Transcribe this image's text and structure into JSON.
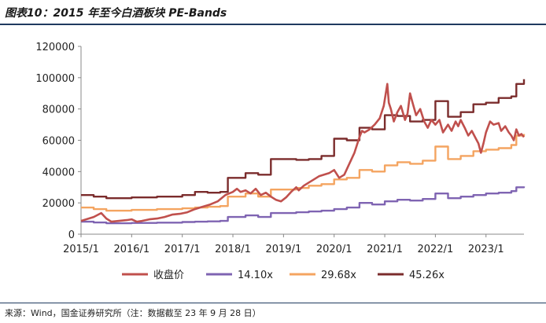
{
  "header": {
    "title": "图表10：2015 年至今白酒板块 PE-Bands"
  },
  "footer": {
    "source": "来源：Wind，国金证券研究所（注：数据截至 23 年 9 月 28 日）"
  },
  "chart_data": {
    "type": "line",
    "title": "2015 年至今白酒板块 PE-Bands",
    "xlabel": "",
    "ylabel": "",
    "ylim": [
      0,
      120000
    ],
    "yticks": [
      0,
      20000,
      40000,
      60000,
      80000,
      100000,
      120000
    ],
    "ytick_labels": [
      "0",
      "20000",
      "40000",
      "60000",
      "80000",
      "100000",
      "120000"
    ],
    "xlim": [
      2015.0,
      2023.75
    ],
    "xticks": [
      2015,
      2016,
      2017,
      2018,
      2019,
      2020,
      2021,
      2022,
      2023
    ],
    "xtick_labels": [
      "2015/1",
      "2016/1",
      "2017/1",
      "2018/1",
      "2019/1",
      "2020/1",
      "2021/1",
      "2022/1",
      "2023/1"
    ],
    "grid": false,
    "legend_position": "bottom",
    "series": [
      {
        "name": "收盘价",
        "color": "#c0504d",
        "step": false,
        "x": [
          2015.0,
          2015.1,
          2015.25,
          2015.4,
          2015.5,
          2015.6,
          2015.75,
          2015.9,
          2016.0,
          2016.1,
          2016.2,
          2016.35,
          2016.5,
          2016.65,
          2016.8,
          2016.95,
          2017.1,
          2017.25,
          2017.4,
          2017.55,
          2017.7,
          2017.85,
          2018.0,
          2018.08,
          2018.15,
          2018.25,
          2018.35,
          2018.45,
          2018.55,
          2018.65,
          2018.75,
          2018.85,
          2018.95,
          2019.05,
          2019.15,
          2019.25,
          2019.3,
          2019.4,
          2019.5,
          2019.6,
          2019.7,
          2019.8,
          2019.9,
          2020.0,
          2020.1,
          2020.2,
          2020.3,
          2020.4,
          2020.5,
          2020.55,
          2020.6,
          2020.7,
          2020.8,
          2020.9,
          2020.98,
          2021.05,
          2021.08,
          2021.12,
          2021.18,
          2021.25,
          2021.32,
          2021.4,
          2021.45,
          2021.5,
          2021.55,
          2021.62,
          2021.7,
          2021.78,
          2021.85,
          2021.92,
          2022.0,
          2022.08,
          2022.15,
          2022.25,
          2022.32,
          2022.4,
          2022.45,
          2022.5,
          2022.58,
          2022.65,
          2022.72,
          2022.8,
          2022.85,
          2022.9,
          2022.95,
          2023.0,
          2023.08,
          2023.15,
          2023.25,
          2023.3,
          2023.38,
          2023.45,
          2023.5,
          2023.55,
          2023.6,
          2023.65,
          2023.7,
          2023.75
        ],
        "values": [
          8500,
          9500,
          11000,
          13500,
          10000,
          8000,
          8500,
          9000,
          9500,
          8000,
          8500,
          9500,
          10000,
          11000,
          12500,
          13000,
          14000,
          16000,
          17500,
          19000,
          21000,
          25000,
          27000,
          29000,
          27000,
          28000,
          26000,
          29000,
          25000,
          26500,
          24000,
          22000,
          21000,
          23500,
          27000,
          30000,
          28000,
          31000,
          33000,
          35000,
          37000,
          38000,
          39000,
          41000,
          36000,
          38000,
          45000,
          52000,
          62000,
          66000,
          65000,
          67000,
          70000,
          74000,
          82000,
          96000,
          84000,
          80000,
          72000,
          78000,
          82000,
          73000,
          77000,
          90000,
          84000,
          76000,
          80000,
          72000,
          68000,
          73000,
          70000,
          73000,
          65000,
          70000,
          66000,
          72000,
          69000,
          73000,
          68000,
          63000,
          66000,
          61000,
          58000,
          52000,
          58000,
          65000,
          72000,
          70000,
          71000,
          66000,
          69000,
          65000,
          63000,
          60000,
          67000,
          63000,
          64000,
          62000
        ]
      },
      {
        "name": "14.10x",
        "color": "#7f64b2",
        "step": true,
        "x": [
          2015.0,
          2015.25,
          2015.5,
          2016.0,
          2016.5,
          2017.0,
          2017.25,
          2017.5,
          2017.75,
          2017.9,
          2018.25,
          2018.5,
          2018.75,
          2019.25,
          2019.5,
          2019.75,
          2020.0,
          2020.25,
          2020.5,
          2020.75,
          2021.0,
          2021.25,
          2021.5,
          2021.75,
          2022.0,
          2022.25,
          2022.5,
          2022.75,
          2023.0,
          2023.25,
          2023.5,
          2023.6,
          2023.75
        ],
        "values": [
          8000,
          7500,
          7000,
          7200,
          7400,
          7800,
          8000,
          8200,
          8500,
          11000,
          12000,
          11000,
          13500,
          14000,
          14500,
          15000,
          16000,
          17000,
          20000,
          19000,
          21000,
          22000,
          21500,
          22500,
          26000,
          23000,
          24000,
          25000,
          26000,
          26500,
          27500,
          30000,
          30500
        ]
      },
      {
        "name": "29.68x",
        "color": "#f4a460",
        "step": true,
        "x": [
          2015.0,
          2015.25,
          2015.5,
          2016.0,
          2016.5,
          2017.0,
          2017.25,
          2017.5,
          2017.75,
          2017.9,
          2018.25,
          2018.5,
          2018.75,
          2019.25,
          2019.5,
          2019.75,
          2020.0,
          2020.25,
          2020.5,
          2020.75,
          2021.0,
          2021.25,
          2021.5,
          2021.75,
          2022.0,
          2022.25,
          2022.5,
          2022.75,
          2023.0,
          2023.25,
          2023.5,
          2023.6,
          2023.75
        ],
        "values": [
          17000,
          16000,
          15000,
          15500,
          16000,
          16500,
          17000,
          17500,
          18000,
          24000,
          26000,
          24000,
          28500,
          29500,
          31000,
          32000,
          35000,
          36000,
          41000,
          40000,
          44000,
          46000,
          45000,
          47000,
          56000,
          48000,
          50000,
          53000,
          54000,
          55000,
          57000,
          63000,
          64000
        ]
      },
      {
        "name": "45.26x",
        "color": "#7b2c2c",
        "step": true,
        "x": [
          2015.0,
          2015.25,
          2015.5,
          2016.0,
          2016.5,
          2017.0,
          2017.25,
          2017.5,
          2017.75,
          2017.9,
          2018.25,
          2018.5,
          2018.75,
          2019.25,
          2019.5,
          2019.75,
          2020.0,
          2020.25,
          2020.5,
          2020.75,
          2021.0,
          2021.25,
          2021.5,
          2021.75,
          2022.0,
          2022.25,
          2022.5,
          2022.75,
          2023.0,
          2023.25,
          2023.5,
          2023.6,
          2023.75
        ],
        "values": [
          25000,
          24000,
          23000,
          23500,
          24000,
          25000,
          27000,
          26500,
          27000,
          36000,
          39000,
          38000,
          48000,
          47500,
          48000,
          50000,
          61000,
          60000,
          68000,
          67000,
          76000,
          75500,
          72000,
          73000,
          85000,
          75000,
          78000,
          83000,
          84000,
          87000,
          88000,
          96000,
          99000
        ]
      }
    ]
  }
}
